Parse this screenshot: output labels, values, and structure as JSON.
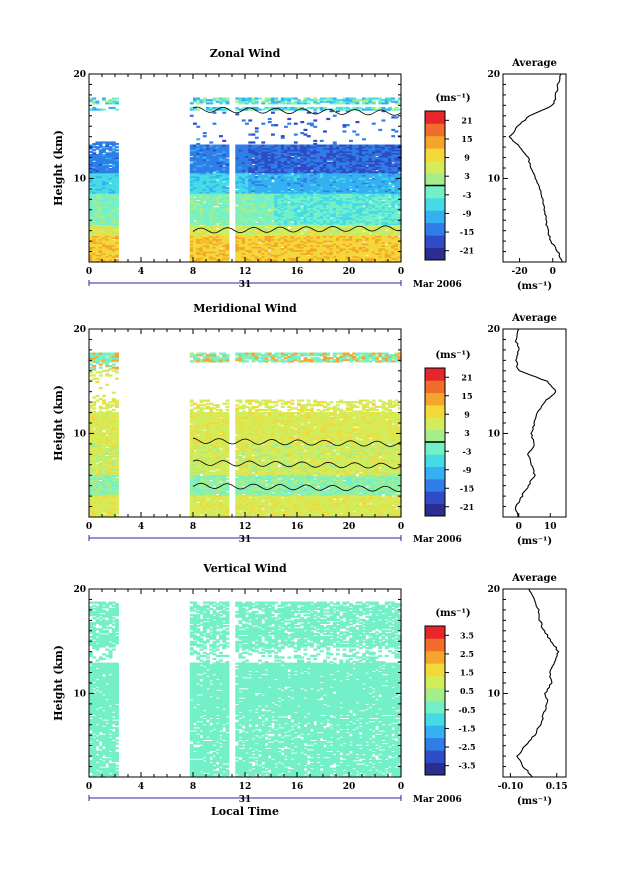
{
  "chart_data": [
    {
      "type": "heatmap",
      "title": "Zonal Wind",
      "ylabel": "Height (km)",
      "unit_label": "(ms⁻¹)",
      "x_ticks": [
        "0",
        "4",
        "8",
        "12",
        "16",
        "20",
        "0"
      ],
      "y_ticks": [
        "20",
        "10"
      ],
      "day_label": "31",
      "date_label": "Mar 2006",
      "ylim": [
        2,
        20
      ],
      "xlim": [
        0,
        24
      ],
      "data_gaps_hours": [
        [
          2.2,
          7.8
        ],
        [
          10.8,
          11.2
        ]
      ],
      "colorbar_ticks": [
        "21",
        "15",
        "9",
        "3",
        "-3",
        "-9",
        "-15",
        "-21"
      ],
      "colorbar_range": [
        -24,
        24
      ],
      "colorbar_marker": 0,
      "field": "zonal",
      "profile": {
        "title": "Average",
        "y_ticks": [
          "20",
          "10"
        ],
        "x_ticks": [
          "-20",
          "0"
        ],
        "xlim": [
          -30,
          8
        ],
        "unit_label": "(ms⁻¹)",
        "heights_km": [
          2,
          3,
          4,
          5,
          6,
          7,
          8,
          9,
          10,
          11,
          12,
          13,
          14,
          15,
          16,
          17,
          18,
          19,
          20
        ],
        "values": [
          6,
          3,
          -1,
          -3,
          -4,
          -5,
          -6,
          -8,
          -10,
          -13,
          -15,
          -20,
          -26,
          -21,
          -14,
          0,
          2,
          3,
          5
        ]
      }
    },
    {
      "type": "heatmap",
      "title": "Meridional Wind",
      "ylabel": "Height (km)",
      "unit_label": "(ms⁻¹)",
      "x_ticks": [
        "0",
        "4",
        "8",
        "12",
        "16",
        "20",
        "0"
      ],
      "y_ticks": [
        "20",
        "10"
      ],
      "day_label": "31",
      "date_label": "Mar 2006",
      "ylim": [
        2,
        20
      ],
      "xlim": [
        0,
        24
      ],
      "data_gaps_hours": [
        [
          2.2,
          7.8
        ],
        [
          10.8,
          11.2
        ]
      ],
      "colorbar_ticks": [
        "21",
        "15",
        "9",
        "3",
        "-3",
        "-9",
        "-15",
        "-21"
      ],
      "colorbar_range": [
        -24,
        24
      ],
      "colorbar_marker": 0,
      "field": "meridional",
      "profile": {
        "title": "Average",
        "y_ticks": [
          "20",
          "10"
        ],
        "x_ticks": [
          "0",
          "10"
        ],
        "xlim": [
          -5,
          15
        ],
        "unit_label": "(ms⁻¹)",
        "heights_km": [
          2,
          3,
          4,
          5,
          6,
          7,
          8,
          9,
          10,
          11,
          12,
          13,
          14,
          15,
          16,
          17,
          18,
          19,
          20
        ],
        "values": [
          0,
          -1,
          1,
          3,
          5,
          4,
          3,
          5,
          4,
          5,
          6,
          8,
          12,
          9,
          0,
          -1,
          0,
          -1,
          0
        ]
      }
    },
    {
      "type": "heatmap",
      "title": "Vertical Wind",
      "ylabel": "Height (km)",
      "xlabel": "Local Time",
      "unit_label": "(ms⁻¹)",
      "x_ticks": [
        "0",
        "4",
        "8",
        "12",
        "16",
        "20",
        "0"
      ],
      "y_ticks": [
        "20",
        "10"
      ],
      "day_label": "31",
      "date_label": "Mar 2006",
      "ylim": [
        2,
        20
      ],
      "xlim": [
        0,
        24
      ],
      "data_gaps_hours": [
        [
          2.2,
          7.8
        ],
        [
          10.8,
          11.2
        ]
      ],
      "colorbar_ticks": [
        "3.5",
        "2.5",
        "1.5",
        "0.5",
        "-0.5",
        "-1.5",
        "-2.5",
        "-3.5"
      ],
      "colorbar_range": [
        -4,
        4
      ],
      "colorbar_marker": null,
      "field": "vertical",
      "profile": {
        "title": "Average",
        "y_ticks": [
          "20",
          "10"
        ],
        "x_ticks": [
          "-0.10",
          "0.15"
        ],
        "xlim": [
          -0.14,
          0.2
        ],
        "unit_label": "(ms⁻¹)",
        "heights_km": [
          2,
          3,
          4,
          5,
          6,
          7,
          8,
          9,
          10,
          11,
          12,
          13,
          14,
          15,
          16,
          17,
          18,
          19,
          20
        ],
        "values": [
          0.02,
          -0.03,
          -0.06,
          -0.02,
          0.03,
          0.06,
          0.08,
          0.1,
          0.09,
          0.12,
          0.11,
          0.14,
          0.16,
          0.12,
          0.08,
          0.06,
          0.05,
          0.03,
          0.0
        ]
      }
    }
  ],
  "colors": {
    "colormap": [
      "#2b2e8f",
      "#2d4cc6",
      "#2f7ee8",
      "#35b1f2",
      "#44dbe6",
      "#74f0c8",
      "#a4ee8c",
      "#d3ec5a",
      "#f3d83a",
      "#f6a52c",
      "#f16d2b",
      "#e6262b"
    ]
  }
}
